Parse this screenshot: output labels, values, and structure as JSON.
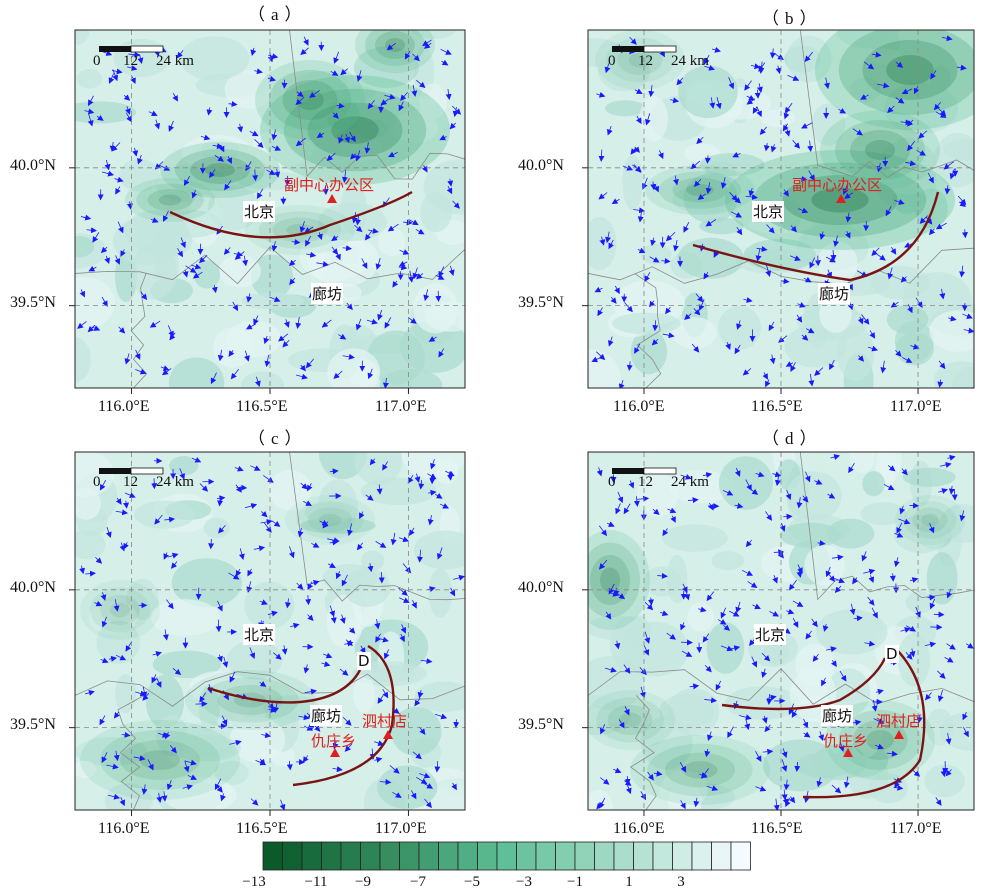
{
  "colors": {
    "frame": "#222222",
    "grid": "#888888",
    "vector": "#1a1aff",
    "curve": "#7a1414",
    "marker": "#e02020",
    "boundary": "#8a8a8a"
  },
  "axes": {
    "x_ticks": [
      "116.0°E",
      "116.5°E",
      "117.0°E"
    ],
    "y_ticks": [
      "40.0°N",
      "39.5°N"
    ]
  },
  "scale_bar": {
    "labels": [
      "0",
      "12",
      "24 km"
    ]
  },
  "panels": [
    {
      "id": "a",
      "title": "（a）",
      "places": [
        {
          "name": "北京",
          "style": "black"
        },
        {
          "name": "廊坊",
          "style": "black"
        },
        {
          "name": "副中心办公区",
          "style": "red"
        }
      ]
    },
    {
      "id": "b",
      "title": "（b）",
      "places": [
        {
          "name": "北京",
          "style": "black"
        },
        {
          "name": "廊坊",
          "style": "black"
        },
        {
          "name": "副中心办公区",
          "style": "red"
        }
      ]
    },
    {
      "id": "c",
      "title": "（c）",
      "places": [
        {
          "name": "北京",
          "style": "black"
        },
        {
          "name": "廊坊",
          "style": "black"
        },
        {
          "name": "D",
          "style": "black"
        },
        {
          "name": "泗村店",
          "style": "red"
        },
        {
          "name": "仇庄乡",
          "style": "red"
        }
      ]
    },
    {
      "id": "d",
      "title": "（d）",
      "places": [
        {
          "name": "北京",
          "style": "black"
        },
        {
          "name": "廊坊",
          "style": "black"
        },
        {
          "name": "D",
          "style": "black"
        },
        {
          "name": "泗村店",
          "style": "red"
        },
        {
          "name": "仇庄乡",
          "style": "red"
        }
      ]
    }
  ],
  "colorbar": {
    "labels": [
      "−13",
      "−11",
      "−9",
      "−7",
      "−5",
      "−3",
      "−1",
      "1",
      "3"
    ],
    "range": [
      -13,
      3
    ],
    "color_low": "#0a5a2a",
    "color_mid": "#5fbf96",
    "color_high": "#f4fbff"
  }
}
